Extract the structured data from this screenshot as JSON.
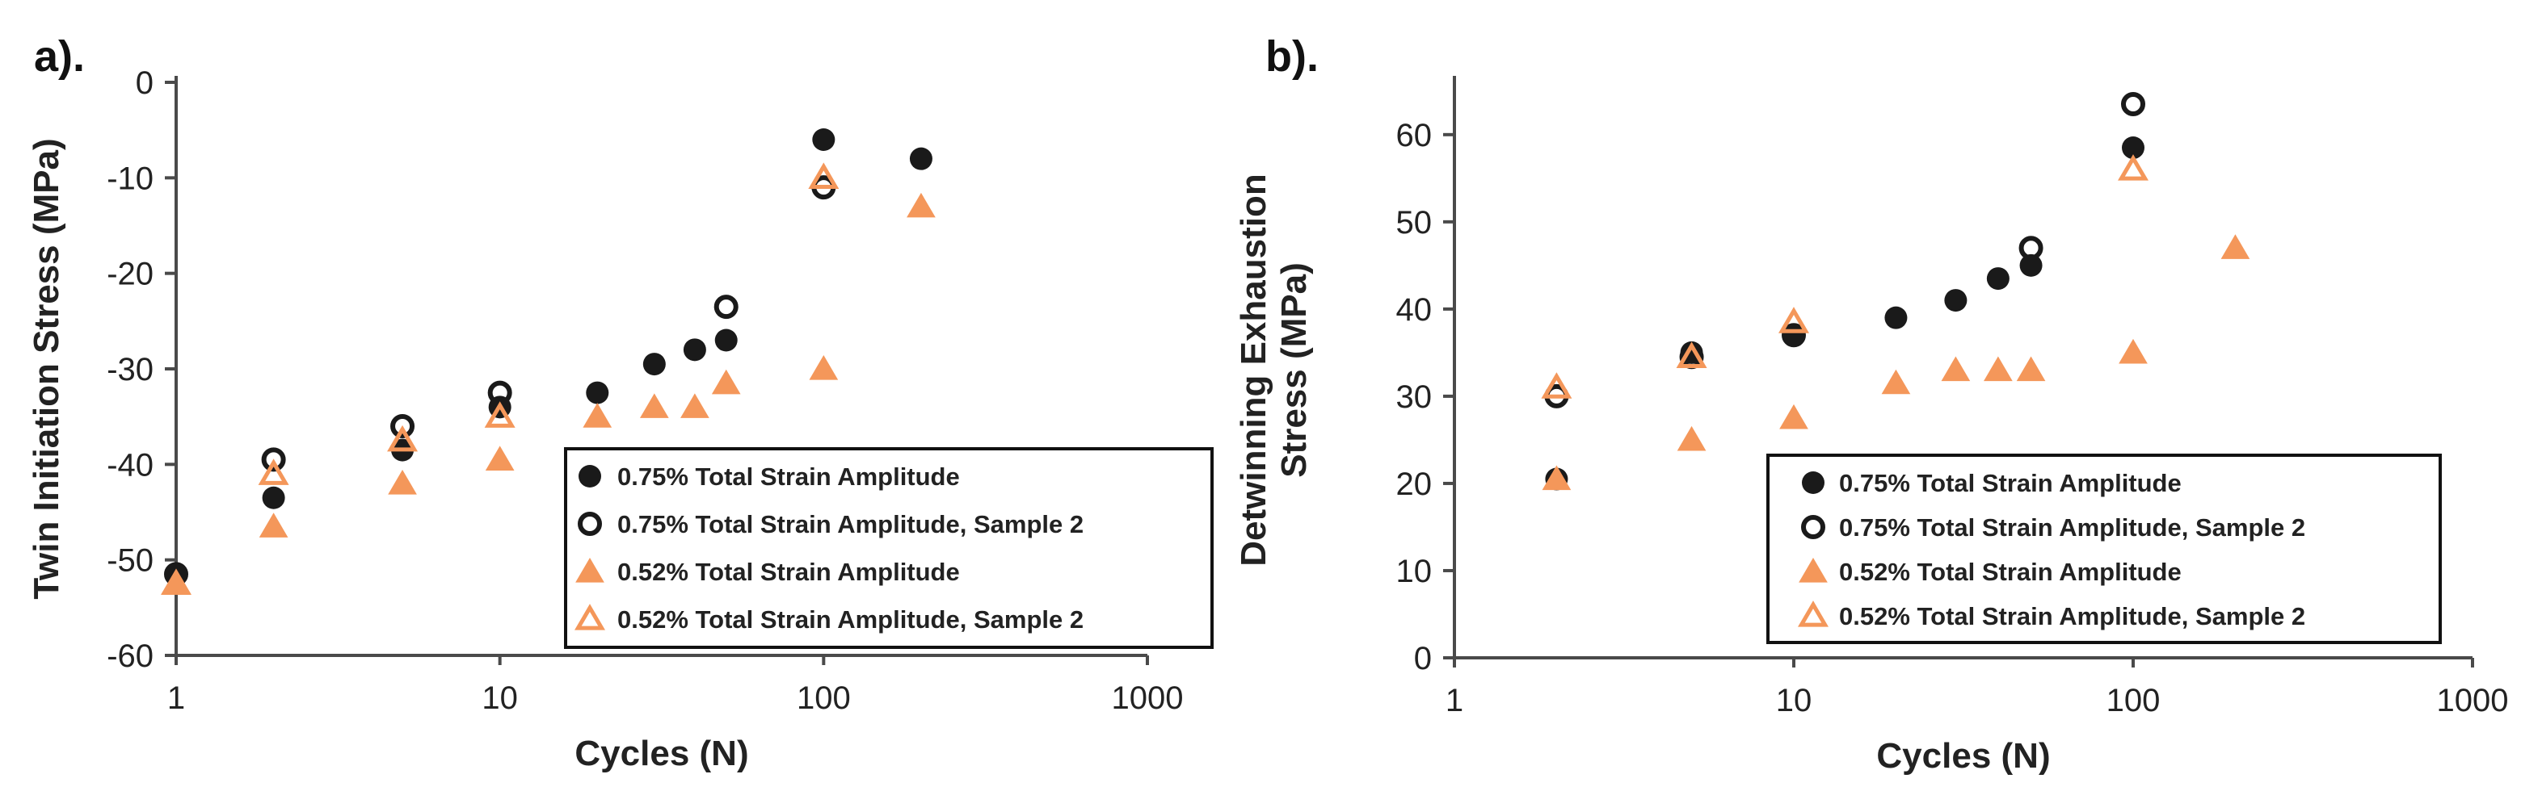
{
  "colors": {
    "black": "#1a1a1a",
    "orange": "#f4975a",
    "axis": "#4a4a4a"
  },
  "chart_data": [
    {
      "panel_label": "a).",
      "type": "scatter",
      "xscale": "log",
      "xlim": [
        1,
        1000
      ],
      "ylim": [
        -60,
        0
      ],
      "xticks": [
        1,
        10,
        100,
        1000
      ],
      "xtick_labels": [
        "1",
        "10",
        "100",
        "1000"
      ],
      "yticks": [
        0,
        -10,
        -20,
        -30,
        -40,
        -50,
        -60
      ],
      "ytick_labels": [
        "0",
        "-10",
        "-20",
        "-30",
        "-40",
        "-50",
        "-60"
      ],
      "xlabel": "Cycles (N)",
      "ylabel": "Twin Initiation Stress (MPa)",
      "legend_position": "bottom-right",
      "series": [
        {
          "name": "0.75% Total Strain Amplitude",
          "marker": "filled-circle",
          "color": "#1a1a1a",
          "points": [
            [
              1,
              -51.5
            ],
            [
              2,
              -43.5
            ],
            [
              5,
              -38.5
            ],
            [
              10,
              -34
            ],
            [
              20,
              -32.5
            ],
            [
              30,
              -29.5
            ],
            [
              40,
              -28
            ],
            [
              50,
              -27
            ],
            [
              100,
              -6
            ],
            [
              200,
              -8
            ]
          ]
        },
        {
          "name": "0.75% Total Strain Amplitude, Sample 2",
          "marker": "open-circle",
          "color": "#1a1a1a",
          "points": [
            [
              1,
              -51.5
            ],
            [
              2,
              -39.5
            ],
            [
              5,
              -36
            ],
            [
              10,
              -32.5
            ],
            [
              50,
              -23.5
            ],
            [
              100,
              -11
            ]
          ]
        },
        {
          "name": "0.52% Total Strain Amplitude",
          "marker": "filled-triangle",
          "color": "#f4975a",
          "points": [
            [
              1,
              -52.5
            ],
            [
              2,
              -46.5
            ],
            [
              5,
              -42
            ],
            [
              10,
              -39.5
            ],
            [
              20,
              -35
            ],
            [
              30,
              -34
            ],
            [
              40,
              -34
            ],
            [
              50,
              -31.5
            ],
            [
              100,
              -30
            ],
            [
              200,
              -13
            ]
          ]
        },
        {
          "name": "0.52% Total Strain Amplitude, Sample 2",
          "marker": "open-triangle",
          "color": "#f4975a",
          "points": [
            [
              1,
              -52.5
            ],
            [
              2,
              -41
            ],
            [
              5,
              -37.5
            ],
            [
              10,
              -35
            ],
            [
              100,
              -10
            ]
          ]
        }
      ]
    },
    {
      "panel_label": "b).",
      "type": "scatter",
      "xscale": "log",
      "xlim": [
        1,
        1000
      ],
      "ylim": [
        0,
        66
      ],
      "xticks": [
        1,
        10,
        100,
        1000
      ],
      "xtick_labels": [
        "1",
        "10",
        "100",
        "1000"
      ],
      "yticks": [
        0,
        10,
        20,
        30,
        40,
        50,
        60
      ],
      "ytick_labels": [
        "0",
        "10",
        "20",
        "30",
        "40",
        "50",
        "60"
      ],
      "xlabel": "Cycles (N)",
      "ylabel": [
        "Detwinning Exhaustion",
        "Stress (MPa)"
      ],
      "legend_position": "bottom-right",
      "series": [
        {
          "name": "0.75% Total Strain Amplitude",
          "marker": "filled-circle",
          "color": "#1a1a1a",
          "points": [
            [
              2,
              20.5
            ],
            [
              5,
              35
            ],
            [
              10,
              37
            ],
            [
              20,
              39
            ],
            [
              30,
              41
            ],
            [
              40,
              43.5
            ],
            [
              50,
              45
            ],
            [
              100,
              58.5
            ]
          ]
        },
        {
          "name": "0.75% Total Strain Amplitude, Sample 2",
          "marker": "open-circle",
          "color": "#1a1a1a",
          "points": [
            [
              2,
              30
            ],
            [
              5,
              34.5
            ],
            [
              10,
              37
            ],
            [
              50,
              47
            ],
            [
              100,
              63.5
            ]
          ]
        },
        {
          "name": "0.52% Total Strain Amplitude",
          "marker": "filled-triangle",
          "color": "#f4975a",
          "points": [
            [
              2,
              20.5
            ],
            [
              5,
              25
            ],
            [
              10,
              27.5
            ],
            [
              20,
              31.5
            ],
            [
              30,
              33
            ],
            [
              40,
              33
            ],
            [
              50,
              33
            ],
            [
              100,
              35
            ],
            [
              200,
              47
            ]
          ]
        },
        {
          "name": "0.52% Total Strain Amplitude, Sample 2",
          "marker": "open-triangle",
          "color": "#f4975a",
          "points": [
            [
              2,
              31
            ],
            [
              5,
              34.5
            ],
            [
              10,
              38.5
            ],
            [
              100,
              56
            ]
          ]
        }
      ]
    }
  ]
}
